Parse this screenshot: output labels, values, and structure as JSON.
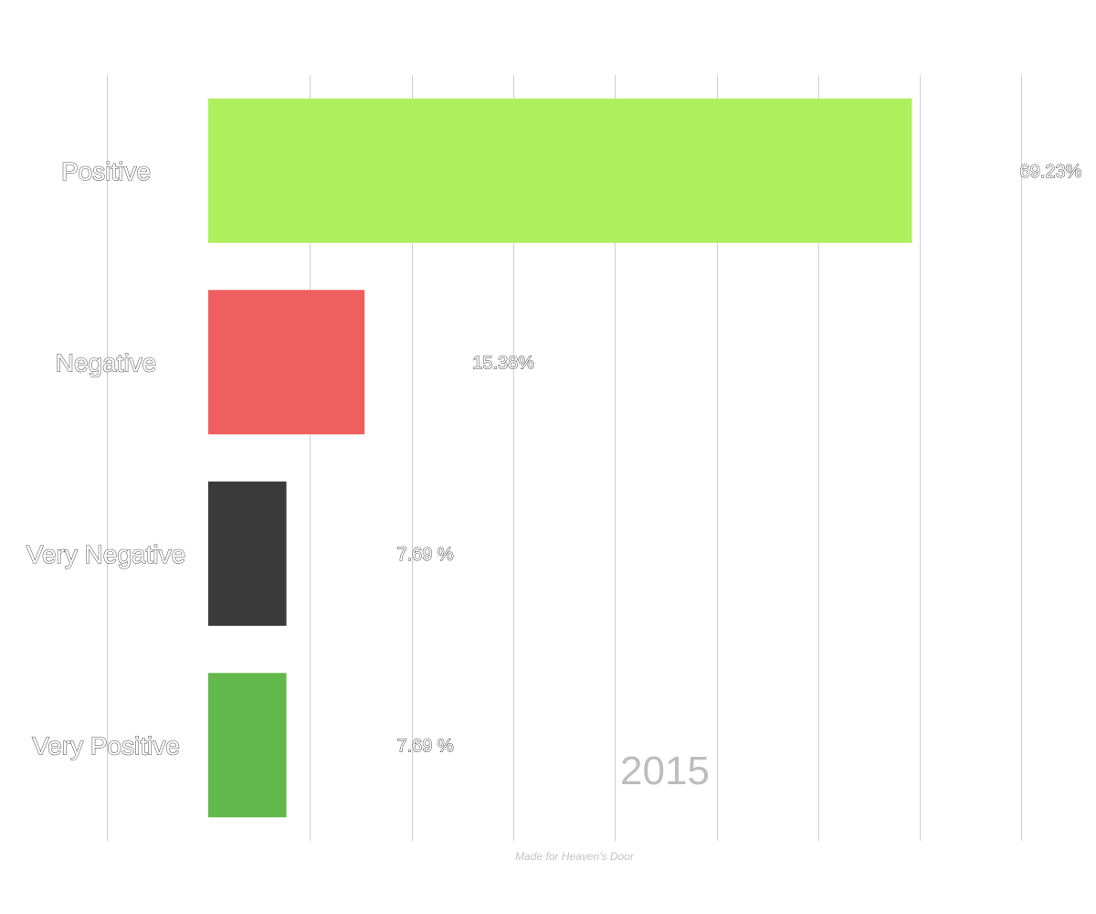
{
  "chart_data": {
    "type": "bar",
    "orientation": "horizontal",
    "categories": [
      "Positive",
      "Negative",
      "Very Negative",
      "Very Positive"
    ],
    "values": [
      69.23,
      15.38,
      7.69,
      7.69
    ],
    "value_labels": [
      "69.23%",
      "15.38%",
      "7.69 %",
      "7.69 %"
    ],
    "colors": [
      "#aeef5e",
      "#ef5f5f",
      "#3a3a3a",
      "#62b84b"
    ],
    "xlim": [
      -10,
      80
    ],
    "grid": true,
    "ticks": [
      -10,
      0,
      10,
      20,
      30,
      40,
      50,
      60,
      70,
      80
    ],
    "tick_labels_shown": false,
    "annotation": "2015",
    "credit": "Made for Heaven's Door"
  }
}
